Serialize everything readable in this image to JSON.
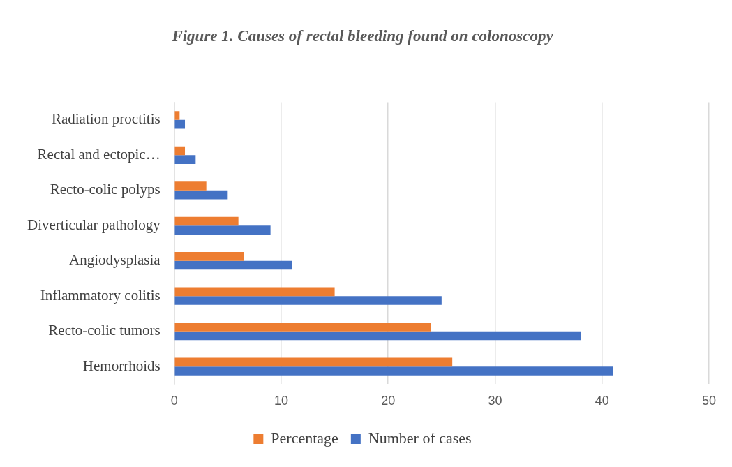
{
  "chart_data": {
    "type": "bar",
    "orientation": "horizontal",
    "title": "Figure 1. Causes of rectal bleeding found on colonoscopy",
    "categories": [
      "Radiation proctitis",
      "Rectal and ectopic…",
      "Recto-colic polyps",
      "Diverticular pathology",
      "Angiodysplasia",
      "Inflammatory colitis",
      "Recto-colic tumors",
      "Hemorrhoids"
    ],
    "series": [
      {
        "name": "Percentage",
        "color": "#ed7d31",
        "values": [
          0.5,
          1,
          3,
          6,
          6.5,
          15,
          24,
          26
        ]
      },
      {
        "name": "Number of cases",
        "color": "#4472c4",
        "values": [
          1,
          2,
          5,
          9,
          11,
          25,
          38,
          41
        ]
      }
    ],
    "xlim": [
      0,
      50
    ],
    "xticks": [
      0,
      10,
      20,
      30,
      40,
      50
    ],
    "grid": "x",
    "legend": "bottom"
  }
}
